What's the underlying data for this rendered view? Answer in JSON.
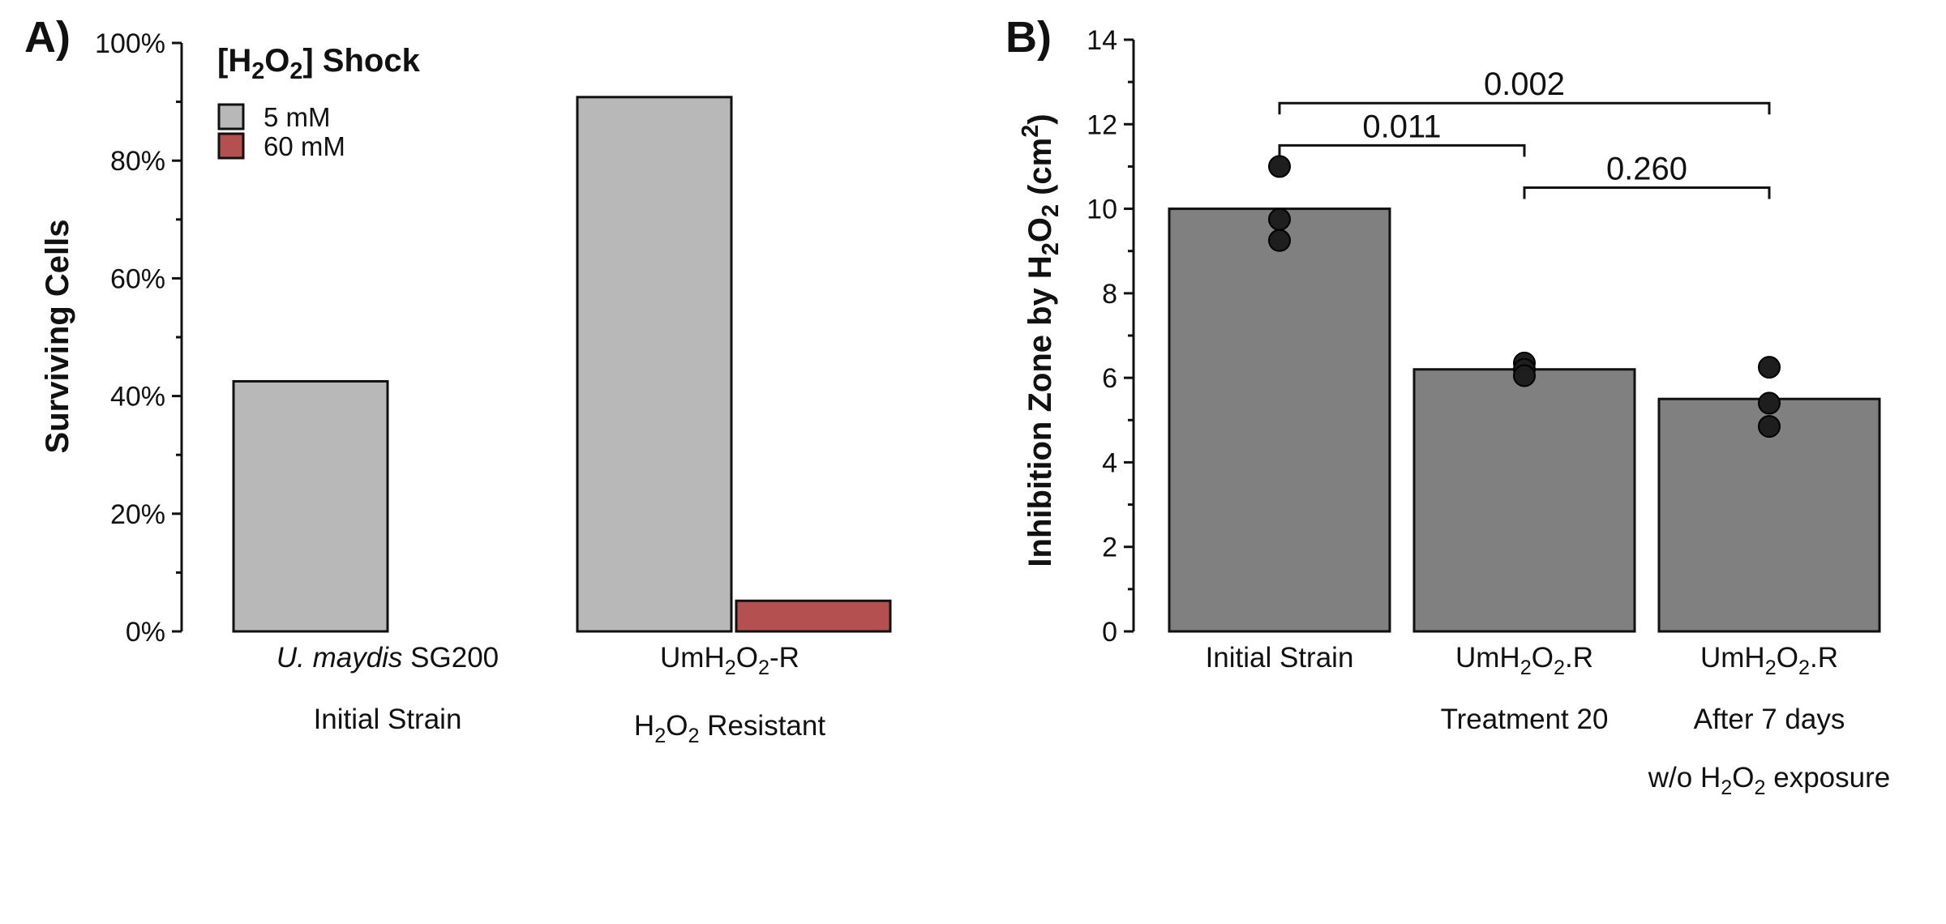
{
  "chart_data": [
    {
      "panel": "A)",
      "type": "bar",
      "ylabel": "Surviving Cells",
      "ylim": [
        0,
        100
      ],
      "yticks": [
        "0%",
        "20%",
        "40%",
        "60%",
        "80%",
        "100%"
      ],
      "legend": {
        "title": {
          "pre": "[H",
          "s1": "2",
          "mid": "O",
          "s2": "2",
          "post": "] Shock"
        },
        "placement": "top-left",
        "entries": [
          "5 mM",
          "60 mM"
        ]
      },
      "categories": [
        {
          "line1_italic": "U. maydis",
          "line1_rest": " SG200",
          "line2": "Initial Strain"
        },
        {
          "line1": {
            "pre": "UmH",
            "s1": "2",
            "mid": "O",
            "s2": "2",
            "post": "-R"
          },
          "line2": {
            "pre": "H",
            "s1": "2",
            "mid": "O",
            "s2": "2",
            "post": " Resistant"
          }
        }
      ],
      "series": [
        {
          "name": "5 mM",
          "color": "#b8b8b8",
          "values": [
            42.5,
            90.8
          ]
        },
        {
          "name": "60 mM",
          "color": "#b55050",
          "values": [
            0,
            5.2
          ]
        }
      ]
    },
    {
      "panel": "B)",
      "type": "bar",
      "ylabel": {
        "pre": "Inhibition Zone by H",
        "s1": "2",
        "mid": "O",
        "s2": "2",
        "unit_open": " (cm",
        "sup": "2",
        "unit_close": ")"
      },
      "ylim": [
        0,
        14
      ],
      "yticks": [
        "0",
        "2",
        "4",
        "6",
        "8",
        "10",
        "12",
        "14"
      ],
      "bar_color": "#808080",
      "categories": [
        {
          "line1": "Initial Strain"
        },
        {
          "line1": {
            "pre": "UmH",
            "s1": "2",
            "mid": "O",
            "s2": "2",
            "post": ".R"
          },
          "line2": "Treatment 20"
        },
        {
          "line1": {
            "pre": "UmH",
            "s1": "2",
            "mid": "O",
            "s2": "2",
            "post": ".R"
          },
          "line2": "After 7 days",
          "line3": {
            "pre": "w/o H",
            "s1": "2",
            "mid": "O",
            "s2": "2",
            "post": " exposure"
          }
        }
      ],
      "values": [
        10.0,
        6.2,
        5.5
      ],
      "points": [
        [
          11.0,
          9.75,
          9.25
        ],
        [
          6.35,
          6.2,
          6.05
        ],
        [
          6.25,
          5.4,
          4.85
        ]
      ],
      "comparisons": [
        {
          "from": 0,
          "to": 2,
          "y": 12.5,
          "label": "0.002"
        },
        {
          "from": 0,
          "to": 1,
          "y": 11.5,
          "label": "0.011"
        },
        {
          "from": 1,
          "to": 2,
          "y": 10.5,
          "label": "0.260"
        }
      ]
    }
  ]
}
